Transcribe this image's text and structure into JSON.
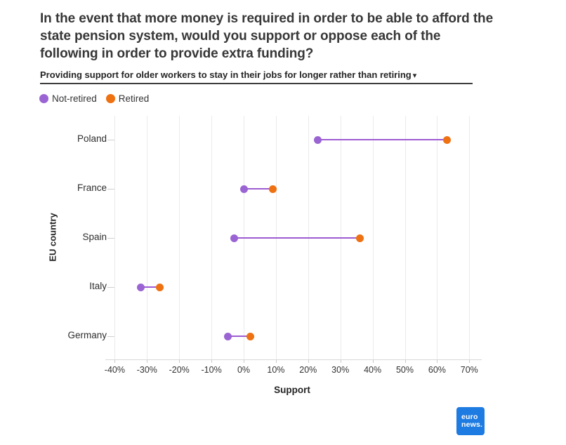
{
  "header": {
    "title": "In the event that more money is required in order to be able to afford the state pension system, would you support or oppose each of the following in order to provide extra funding?",
    "subtitle": "Providing support for older workers to stay in their jobs for longer rather than retiring",
    "dropdown_icon": "▾"
  },
  "legend": [
    {
      "label": "Not-retired",
      "color": "#9a64d3"
    },
    {
      "label": "Retired",
      "color": "#ee7112"
    }
  ],
  "chart_data": {
    "type": "dumbbell",
    "orientation": "horizontal",
    "unit": "percent",
    "categories": [
      "Poland",
      "France",
      "Spain",
      "Italy",
      "Germany"
    ],
    "series": [
      {
        "name": "Not-retired",
        "color": "#9a64d3",
        "values": [
          23,
          0,
          -3,
          -32,
          -5
        ]
      },
      {
        "name": "Retired",
        "color": "#ee7112",
        "values": [
          63,
          9,
          36,
          -26,
          2
        ]
      }
    ],
    "connector_color": "#9d5bd2",
    "xlabel": "Support",
    "ylabel": "EU country",
    "x_ticks": [
      -40,
      -30,
      -20,
      -10,
      0,
      10,
      20,
      30,
      40,
      50,
      60,
      70
    ],
    "x_tick_labels": [
      "-40%",
      "-30%",
      "-20%",
      "-10%",
      "0%",
      "10%",
      "20%",
      "30%",
      "40%",
      "50%",
      "60%",
      "70%"
    ],
    "xlim": [
      -45,
      75
    ],
    "grid": true,
    "legend_position": "top-left"
  },
  "footer": {
    "logo_line1": "euro",
    "logo_line2": "news.",
    "logo_bg_color": "#1e7be1"
  }
}
